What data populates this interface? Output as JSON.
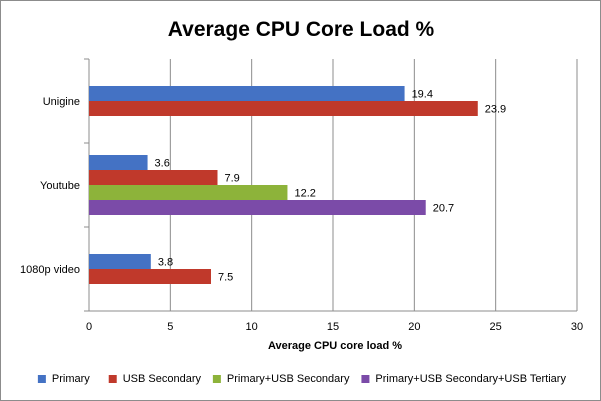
{
  "chart_data": {
    "type": "bar",
    "orientation": "horizontal",
    "title": "Average CPU Core Load %",
    "xlabel": "Average CPU core load %",
    "ylabel": "",
    "xlim": [
      0,
      30
    ],
    "xticks": [
      0,
      5,
      10,
      15,
      20,
      25,
      30
    ],
    "grid": "vertical",
    "legend_position": "bottom",
    "categories": [
      "Unigine",
      "Youtube",
      "1080p video"
    ],
    "series": [
      {
        "name": "Primary",
        "color": "#4472C4",
        "values": [
          19.4,
          3.6,
          3.8
        ]
      },
      {
        "name": "USB Secondary",
        "color": "#C0392B",
        "values": [
          23.9,
          7.9,
          7.5
        ]
      },
      {
        "name": "Primary+USB Secondary",
        "color": "#8DB33A",
        "values": [
          null,
          12.2,
          null
        ]
      },
      {
        "name": "Primary+USB Secondary+USB Tertiary",
        "color": "#7B4BA8",
        "values": [
          null,
          20.7,
          null
        ]
      }
    ]
  }
}
